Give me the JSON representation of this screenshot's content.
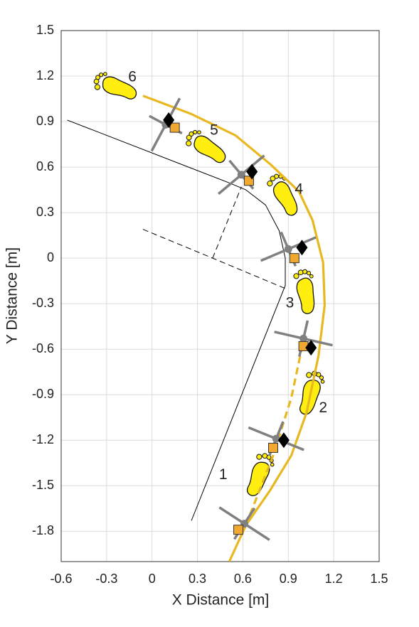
{
  "chart_data": {
    "type": "line",
    "xlabel": "X Distance [m]",
    "ylabel": "Y Distance [m]",
    "xlim": [
      -0.6,
      1.5
    ],
    "ylim": [
      -2.0,
      1.5
    ],
    "xticks": [
      -0.6,
      -0.3,
      0,
      0.3,
      0.6,
      0.9,
      1.2,
      1.5
    ],
    "yticks": [
      -1.8,
      -1.5,
      -1.2,
      -0.9,
      -0.6,
      -0.3,
      0,
      0.3,
      0.6,
      0.9,
      1.2,
      1.5
    ],
    "grid": true,
    "series": [
      {
        "color": "#000000",
        "style": "solid",
        "x": [
          -0.56,
          0.5,
          0.62,
          0.75,
          0.84,
          0.88,
          0.88,
          0.26
        ],
        "y": [
          0.91,
          0.5,
          0.45,
          0.35,
          0.18,
          0.0,
          -0.18,
          -1.73
        ]
      },
      {
        "color": "#000000",
        "style": "dashed",
        "x": [
          -0.06,
          0.4,
          0.88,
          null,
          0.4,
          0.59
        ],
        "y": [
          0.19,
          0.0,
          -0.2,
          null,
          0.0,
          0.47
        ]
      },
      {
        "color": "#e8b820",
        "style": "solid",
        "x": [
          0.51,
          0.62,
          0.78,
          0.92,
          1.02,
          1.1,
          1.14,
          1.13,
          1.06,
          0.97,
          0.78,
          0.55,
          0.26,
          -0.06
        ],
        "y": [
          -2.0,
          -1.76,
          -1.53,
          -1.3,
          -1.02,
          -0.64,
          -0.31,
          -0.03,
          0.25,
          0.44,
          0.62,
          0.81,
          0.95,
          1.07
        ]
      },
      {
        "color": "#e8b820",
        "style": "dashed",
        "x": [
          0.62,
          0.8,
          0.92,
          0.99
        ],
        "y": [
          -1.76,
          -1.3,
          -0.92,
          -0.59
        ]
      }
    ],
    "footprints": {
      "color": "#ffee10",
      "x": [
        0.71,
        1.05,
        1.02,
        0.88,
        0.37,
        -0.23
      ],
      "y": [
        -1.44,
        -0.9,
        -0.23,
        0.41,
        0.73,
        1.13
      ],
      "angles": [
        20,
        15,
        -10,
        -30,
        -57,
        -70
      ]
    },
    "markers": [
      {
        "shape": "cross",
        "color": "#808080",
        "x": [
          0.61,
          0.82,
          1.0,
          0.9,
          0.59,
          0.09
        ],
        "y": [
          -1.75,
          -1.19,
          -0.53,
          0.06,
          0.55,
          0.88
        ],
        "angles": [
          33,
          22,
          13,
          -23,
          -40,
          -62
        ]
      },
      {
        "shape": "square",
        "color": "#f0a830",
        "x": [
          0.57,
          0.8,
          1.0,
          0.94,
          0.64,
          0.15
        ],
        "y": [
          -1.79,
          -1.25,
          -0.58,
          0.0,
          0.51,
          0.86
        ]
      },
      {
        "shape": "diamond",
        "color": "#000000",
        "x": [
          0.87,
          1.05,
          0.99,
          0.66,
          0.11
        ],
        "y": [
          -1.2,
          -0.59,
          0.07,
          0.57,
          0.91
        ]
      }
    ],
    "annotations": [
      {
        "text": "1",
        "x": 0.47,
        "y": -1.43
      },
      {
        "text": "2",
        "x": 1.13,
        "y": -0.99
      },
      {
        "text": "3",
        "x": 0.91,
        "y": -0.3
      },
      {
        "text": "4",
        "x": 0.97,
        "y": 0.45
      },
      {
        "text": "5",
        "x": 0.41,
        "y": 0.84
      },
      {
        "text": "6",
        "x": -0.13,
        "y": 1.19
      }
    ]
  }
}
